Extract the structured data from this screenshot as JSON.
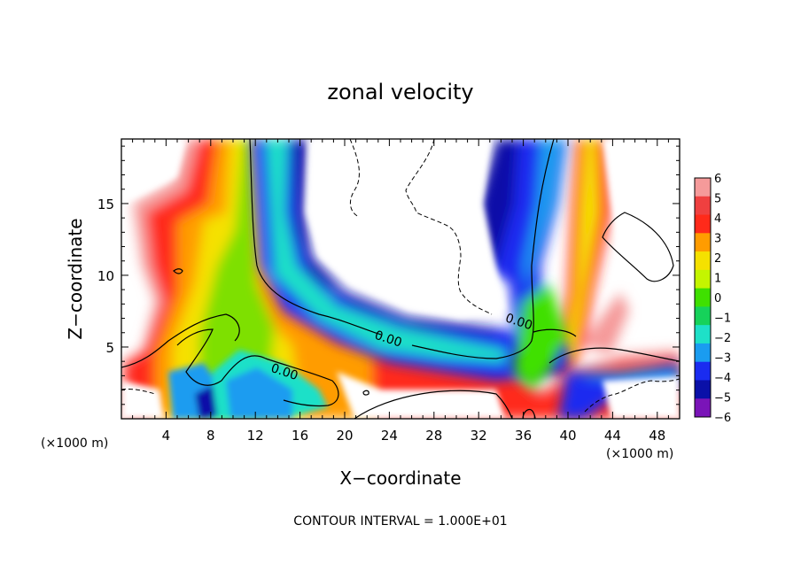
{
  "chart_data": {
    "type": "heatmap",
    "title": "zonal velocity",
    "xlabel": "X−coordinate",
    "ylabel": "Z−coordinate",
    "x_unit_left": "(×1000 m)",
    "x_unit_right": "(×1000 m)",
    "footer": "CONTOUR INTERVAL = 1.000E+01",
    "xlim": [
      0,
      50
    ],
    "ylim": [
      0,
      19.5
    ],
    "x_ticks": [
      4,
      8,
      12,
      16,
      20,
      24,
      28,
      32,
      36,
      40,
      44,
      48
    ],
    "x_tick_labels": [
      "4",
      "8",
      "12",
      "16",
      "20",
      "24",
      "28",
      "32",
      "36",
      "40",
      "44",
      "48"
    ],
    "y_ticks": [
      5,
      10,
      15
    ],
    "y_tick_labels": [
      "5",
      "10",
      "15"
    ],
    "contour_labels": [
      {
        "text": "0.00",
        "x": 23.8,
        "y": 5.3
      },
      {
        "text": "0.00",
        "x": 14.5,
        "y": 3.0
      },
      {
        "text": "0.00",
        "x": 35.5,
        "y": 6.5
      }
    ],
    "colorbar": {
      "levels": [
        6,
        5,
        4,
        3,
        2,
        1,
        0,
        -1,
        -2,
        -3,
        -4,
        -5,
        -6
      ],
      "labels": [
        "6",
        "5",
        "4",
        "3",
        "2",
        "1",
        "0",
        "−1",
        "−2",
        "−3",
        "−4",
        "−5",
        "−6"
      ],
      "colors": [
        "#f59a9a",
        "#ef4040",
        "#ff2a1a",
        "#ff9c00",
        "#f5e100",
        "#c4f500",
        "#3fe000",
        "#16d25a",
        "#1ee0c8",
        "#1a9cf0",
        "#1a2cf0",
        "#0a10a8",
        "#7a14b8"
      ]
    },
    "features": {
      "positive_zone_color_scale": [
        "#f59a9a",
        "#ef4040",
        "#ff9c00",
        "#f5e100",
        "#7ee000"
      ],
      "negative_zone_color_scale": [
        "#1ee0c8",
        "#1a9cf0",
        "#1a2cf0",
        "#0a10a8"
      ]
    }
  }
}
